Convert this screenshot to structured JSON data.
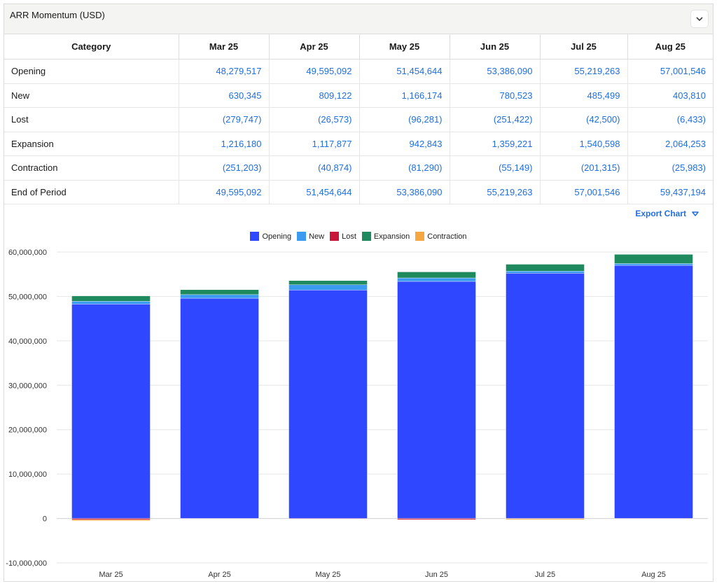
{
  "panel": {
    "title": "ARR Momentum (USD)",
    "collapse_icon": "chevron-down-icon"
  },
  "table": {
    "headers": [
      "Category",
      "Mar 25",
      "Apr 25",
      "May 25",
      "Jun 25",
      "Jul 25",
      "Aug 25"
    ],
    "rows": [
      {
        "category": "Opening",
        "values": [
          "48,279,517",
          "49,595,092",
          "51,454,644",
          "53,386,090",
          "55,219,263",
          "57,001,546"
        ]
      },
      {
        "category": "New",
        "values": [
          "630,345",
          "809,122",
          "1,166,174",
          "780,523",
          "485,499",
          "403,810"
        ]
      },
      {
        "category": "Lost",
        "values": [
          "(279,747)",
          "(26,573)",
          "(96,281)",
          "(251,422)",
          "(42,500)",
          "(6,433)"
        ]
      },
      {
        "category": "Expansion",
        "values": [
          "1,216,180",
          "1,117,877",
          "942,843",
          "1,359,221",
          "1,540,598",
          "2,064,253"
        ]
      },
      {
        "category": "Contraction",
        "values": [
          "(251,203)",
          "(40,874)",
          "(81,290)",
          "(55,149)",
          "(201,315)",
          "(25,983)"
        ]
      },
      {
        "category": "End of Period",
        "values": [
          "49,595,092",
          "51,454,644",
          "53,386,090",
          "55,219,263",
          "57,001,546",
          "59,437,194"
        ]
      }
    ]
  },
  "export": {
    "label": "Export Chart",
    "icon": "triangle-down-icon"
  },
  "colors": {
    "opening": "#2f47ff",
    "new": "#3a9bf0",
    "lost": "#c8173a",
    "expansion": "#1f8a5e",
    "contraction": "#f5a742",
    "link": "#1f6fe0",
    "grid": "#e6e6e6"
  },
  "chart_data": {
    "type": "bar",
    "stacked": true,
    "categories": [
      "Mar 25",
      "Apr 25",
      "May 25",
      "Jun 25",
      "Jul 25",
      "Aug 25"
    ],
    "series": [
      {
        "name": "Opening",
        "color": "#2f47ff",
        "values": [
          48279517,
          49595092,
          51454644,
          53386090,
          55219263,
          57001546
        ]
      },
      {
        "name": "New",
        "color": "#3a9bf0",
        "values": [
          630345,
          809122,
          1166174,
          780523,
          485499,
          403810
        ]
      },
      {
        "name": "Lost",
        "color": "#c8173a",
        "values": [
          -279747,
          -26573,
          -96281,
          -251422,
          -42500,
          -6433
        ]
      },
      {
        "name": "Expansion",
        "color": "#1f8a5e",
        "values": [
          1216180,
          1117877,
          942843,
          1359221,
          1540598,
          2064253
        ]
      },
      {
        "name": "Contraction",
        "color": "#f5a742",
        "values": [
          -251203,
          -40874,
          -81290,
          -55149,
          -201315,
          -25983
        ]
      }
    ],
    "yticks": [
      "60,000,000",
      "50,000,000",
      "40,000,000",
      "30,000,000",
      "20,000,000",
      "10,000,000",
      "0",
      "-10,000,000"
    ],
    "ylim": [
      -10000000,
      60000000
    ],
    "grid": true,
    "legend": "top-center",
    "title": "",
    "xlabel": "",
    "ylabel": ""
  }
}
